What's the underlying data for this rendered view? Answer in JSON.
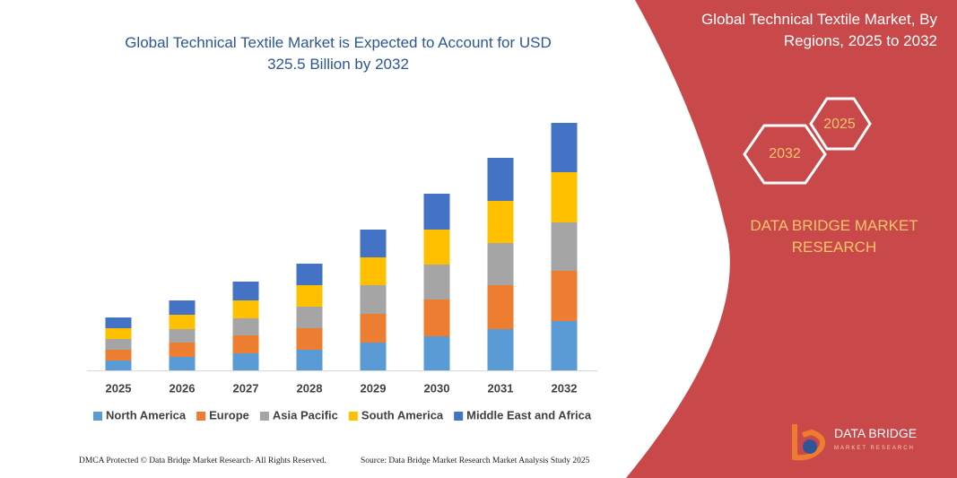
{
  "chart_data": {
    "type": "stacked-bar",
    "title": "Global Technical Textile Market is Expected to Account for USD 325.5 Billion by 2032",
    "categories": [
      "2025",
      "2026",
      "2027",
      "2028",
      "2029",
      "2030",
      "2031",
      "2032"
    ],
    "series": [
      {
        "name": "North America",
        "color": "#5b9bd5",
        "values": [
          11,
          15,
          19,
          23,
          31,
          38,
          46,
          55
        ]
      },
      {
        "name": "Europe",
        "color": "#ed7d31",
        "values": [
          12,
          16,
          20,
          24,
          32,
          41,
          49,
          56
        ]
      },
      {
        "name": "Asia Pacific",
        "color": "#a5a5a5",
        "values": [
          12,
          15,
          19,
          24,
          32,
          39,
          47,
          54
        ]
      },
      {
        "name": "South America",
        "color": "#ffc000",
        "values": [
          12,
          16,
          20,
          24,
          31,
          39,
          47,
          56
        ]
      },
      {
        "name": "Middle East and Africa",
        "color": "#4472c4",
        "values": [
          12,
          16,
          21,
          24,
          31,
          40,
          48,
          55
        ]
      }
    ],
    "legend": "bottom"
  },
  "panel": {
    "title": "Global Technical Textile Market, By Regions, 2025 to 2032",
    "hex_right": "2025",
    "hex_left": "2032",
    "brand": "DATA BRIDGE MARKET RESEARCH"
  },
  "logo": {
    "name": "DATA BRIDGE",
    "tagline": "MARKET RESEARCH"
  },
  "footer": {
    "left": "DMCA Protected © Data Bridge Market Research- All Rights Reserved.",
    "right": "Source: Data Bridge Market Research Market Analysis Study 2025"
  }
}
